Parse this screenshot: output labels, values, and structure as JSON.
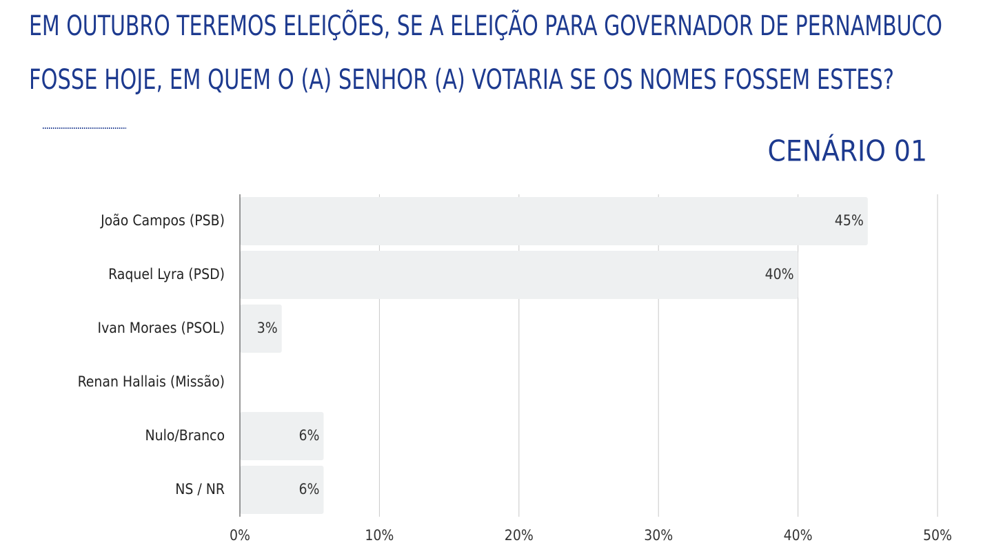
{
  "chart_data": {
    "type": "barh",
    "title": [
      "EM OUTUBRO TEREMOS ELEIÇÕES, SE A ELEIÇÃO PARA GOVERNADOR DE PERNAMBUCO",
      "FOSSE HOJE, EM QUEM O (A) SENHOR (A) VOTARIA SE OS NOMES FOSSEM ESTES?"
    ],
    "subtitle": "CENÁRIO 01",
    "categories": [
      "João Campos (PSB)",
      "Raquel Lyra (PSD)",
      "Ivan Moraes (PSOL)",
      "Renan Hallais (Missão)",
      "Nulo/Branco",
      "NS / NR"
    ],
    "values": [
      45,
      40,
      3,
      0,
      6,
      6
    ],
    "value_labels": [
      "45%",
      "40%",
      "3%",
      null,
      "6%",
      "6%"
    ],
    "color": "#eef0f1",
    "xlim": [
      0,
      50
    ],
    "xticks": [
      {
        "value": 0,
        "label": "0%"
      },
      {
        "value": 10,
        "label": "10%"
      },
      {
        "value": 20,
        "label": "20%"
      },
      {
        "value": 30,
        "label": "30%"
      },
      {
        "value": 40,
        "label": "40%"
      },
      {
        "value": 50,
        "label": "50%"
      }
    ],
    "grid": true
  }
}
